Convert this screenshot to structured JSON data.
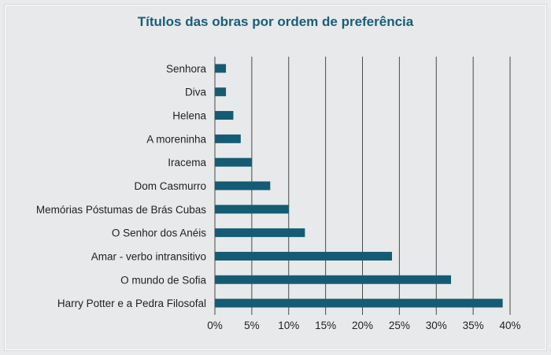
{
  "chart_data": {
    "type": "bar",
    "orientation": "horizontal",
    "title": "Títulos das obras por ordem de preferência",
    "xlabel": "",
    "ylabel": "",
    "categories": [
      "Senhora",
      "Diva",
      "Helena",
      "A moreninha",
      "Iracema",
      "Dom Casmurro",
      "Memórias Póstumas de Brás Cubas",
      "O Senhor dos Anéis",
      "Amar - verbo intransitivo",
      "O mundo de Sofia",
      "Harry Potter e a Pedra Filosofal"
    ],
    "values": [
      1.5,
      1.5,
      2.5,
      3.5,
      5,
      7.5,
      10,
      12.2,
      24,
      32,
      39
    ],
    "xlim": [
      0,
      40
    ],
    "xticks": [
      "0%",
      "5%",
      "10%",
      "15%",
      "20%",
      "25%",
      "30%",
      "35%",
      "40%"
    ],
    "grid": "vertical",
    "legend": "none",
    "bar_color": "#145c73"
  }
}
